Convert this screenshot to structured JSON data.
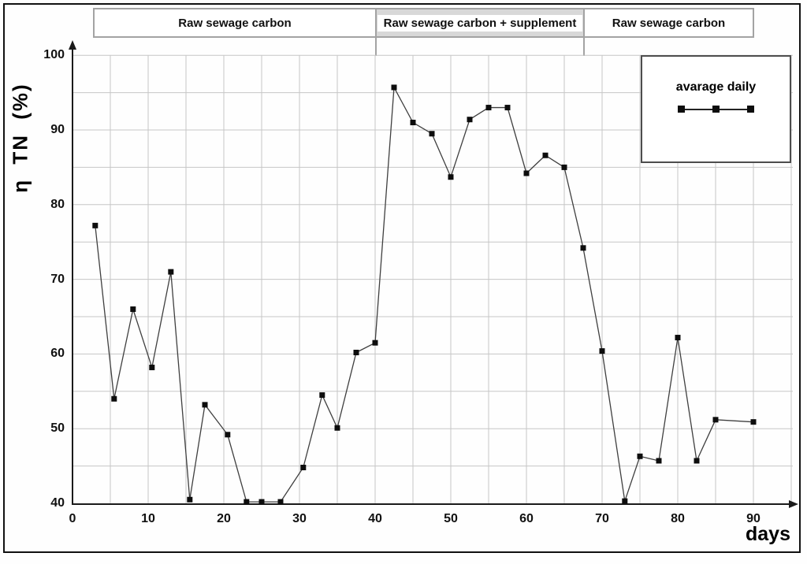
{
  "header": {
    "phases": [
      {
        "label": "Raw sewage carbon",
        "highlighted": false
      },
      {
        "label": "Raw sewage carbon + supplement",
        "highlighted": true
      },
      {
        "label": "Raw sewage carbon",
        "highlighted": false
      }
    ]
  },
  "chart_data": {
    "type": "line",
    "title": "",
    "xlabel": "days",
    "ylabel": "η  TN (%)",
    "xlim": [
      0,
      95
    ],
    "ylim": [
      40,
      100
    ],
    "x_ticks": [
      0,
      10,
      20,
      30,
      40,
      50,
      60,
      70,
      80,
      90
    ],
    "y_ticks": [
      40,
      50,
      60,
      70,
      80,
      90,
      100
    ],
    "grid": "on",
    "grid_step_x": 5,
    "grid_step_y": 5,
    "legend_position": "top-right",
    "phase_boundaries_x": [
      40,
      67.5
    ],
    "series": [
      {
        "name": "avarage daily",
        "marker": "filled-square",
        "x": [
          3,
          5.5,
          8,
          10.5,
          13,
          15.5,
          17.5,
          20.5,
          23,
          25,
          27.5,
          30.5,
          33,
          35,
          37.5,
          40,
          42.5,
          45,
          47.5,
          50,
          52.5,
          55,
          57.5,
          60,
          62.5,
          65,
          67.5,
          70,
          73,
          75,
          77.5,
          80,
          82.5,
          85,
          90
        ],
        "y": [
          77.2,
          54.0,
          66.0,
          58.2,
          71.0,
          40.5,
          53.2,
          49.2,
          40.2,
          40.2,
          40.2,
          44.8,
          54.5,
          50.1,
          60.2,
          61.5,
          95.7,
          91.0,
          89.5,
          83.7,
          91.4,
          93.0,
          93.0,
          84.2,
          86.6,
          85.0,
          74.2,
          60.4,
          40.3,
          46.3,
          45.7,
          62.2,
          45.7,
          51.2,
          50.9
        ]
      }
    ]
  },
  "colors": {
    "series_line": "#3f3f3f",
    "marker": "#0d0d0d",
    "grid": "#c6c6c6",
    "axis": "#1a1a1a",
    "phase_band_bg": "#d8d8d8",
    "frame": "#111111"
  }
}
